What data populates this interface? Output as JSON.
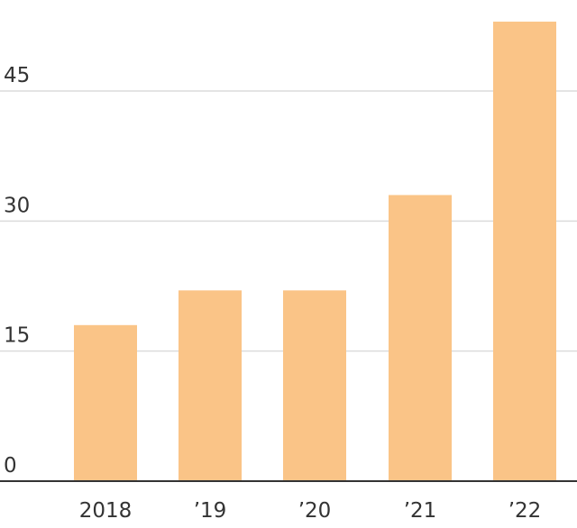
{
  "chart_data": {
    "type": "bar",
    "categories": [
      "2018",
      "’19",
      "’20",
      "’21",
      "’22"
    ],
    "values": [
      18,
      22,
      22,
      33,
      53
    ],
    "title": "",
    "xlabel": "",
    "ylabel": "",
    "ylim": [
      0,
      55
    ],
    "yticks": [
      0,
      15,
      30,
      45
    ],
    "yticks_labels": [
      "0",
      "15",
      "30",
      "45"
    ],
    "grid": true,
    "bar_color": "#fac487",
    "legend": false
  }
}
